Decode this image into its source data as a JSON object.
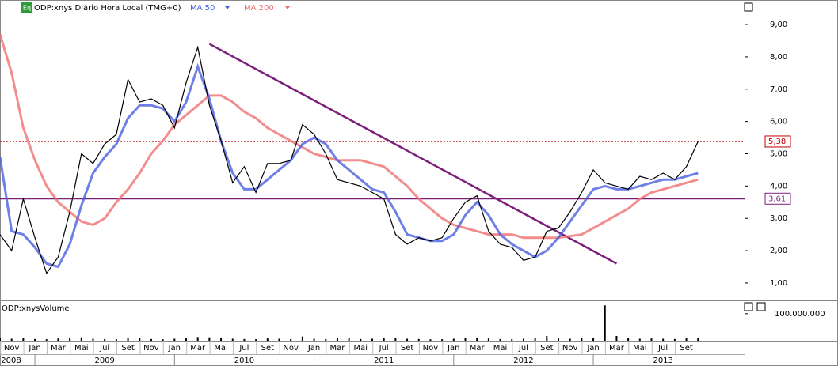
{
  "header": {
    "eq": "Eq",
    "symbol": "ODP:xnys Diário Hora Local (TMG+0)",
    "volume_label": "ODP:xnysVolume"
  },
  "chart_data": [
    {
      "type": "line",
      "x": [
        "2008-10",
        "2008-11",
        "2008-12",
        "2009-01",
        "2009-02",
        "2009-03",
        "2009-04",
        "2009-05",
        "2009-06",
        "2009-07",
        "2009-08",
        "2009-09",
        "2009-10",
        "2009-11",
        "2009-12",
        "2010-01",
        "2010-02",
        "2010-03",
        "2010-04",
        "2010-05",
        "2010-06",
        "2010-07",
        "2010-08",
        "2010-09",
        "2010-10",
        "2010-11",
        "2010-12",
        "2011-01",
        "2011-02",
        "2011-03",
        "2011-04",
        "2011-05",
        "2011-06",
        "2011-07",
        "2011-08",
        "2011-09",
        "2011-10",
        "2011-11",
        "2011-12",
        "2012-01",
        "2012-02",
        "2012-03",
        "2012-04",
        "2012-05",
        "2012-06",
        "2012-07",
        "2012-08",
        "2012-09",
        "2012-10",
        "2012-11",
        "2012-12",
        "2013-01",
        "2013-02",
        "2013-03",
        "2013-04",
        "2013-05",
        "2013-06",
        "2013-07",
        "2013-08",
        "2013-09",
        "2013-10"
      ],
      "series": [
        {
          "color": "#000000",
          "values": [
            2.5,
            2.0,
            3.6,
            2.4,
            1.3,
            1.8,
            3.2,
            5.0,
            4.7,
            5.3,
            5.6,
            7.3,
            6.6,
            6.7,
            6.5,
            5.8,
            7.2,
            8.3,
            6.5,
            5.4,
            4.1,
            4.6,
            3.8,
            4.7,
            4.7,
            4.8,
            5.9,
            5.6,
            5.0,
            4.2,
            4.1,
            4.0,
            3.8,
            3.6,
            2.5,
            2.2,
            2.4,
            2.3,
            2.4,
            3.0,
            3.5,
            3.7,
            2.6,
            2.2,
            2.1,
            1.7,
            1.8,
            2.6,
            2.7,
            3.2,
            3.8,
            4.5,
            4.1,
            4.0,
            3.9,
            4.3,
            4.2,
            4.4,
            4.2,
            4.6,
            5.38
          ]
        },
        {
          "name": "MA 50",
          "color": "#4a5fe0",
          "values": [
            4.9,
            2.6,
            2.5,
            2.1,
            1.6,
            1.5,
            2.2,
            3.4,
            4.4,
            4.9,
            5.3,
            6.1,
            6.5,
            6.5,
            6.4,
            6.0,
            6.6,
            7.7,
            6.7,
            5.4,
            4.4,
            3.9,
            3.9,
            4.2,
            4.5,
            4.8,
            5.3,
            5.5,
            5.3,
            4.8,
            4.5,
            4.2,
            3.9,
            3.8,
            3.2,
            2.5,
            2.4,
            2.3,
            2.3,
            2.5,
            3.1,
            3.5,
            3.1,
            2.5,
            2.2,
            2.0,
            1.8,
            2.0,
            2.4,
            2.9,
            3.4,
            3.9,
            4.0,
            3.9,
            3.9,
            4.0,
            4.1,
            4.2,
            4.2,
            4.3,
            4.4
          ]
        },
        {
          "name": "MA 200",
          "color": "#f07070",
          "values": [
            8.7,
            7.5,
            5.8,
            4.8,
            4.0,
            3.5,
            3.2,
            2.9,
            2.8,
            3.0,
            3.5,
            3.9,
            4.4,
            5.0,
            5.4,
            5.9,
            6.2,
            6.5,
            6.8,
            6.8,
            6.6,
            6.3,
            6.1,
            5.8,
            5.6,
            5.4,
            5.2,
            5.0,
            4.9,
            4.8,
            4.8,
            4.8,
            4.7,
            4.6,
            4.3,
            4.0,
            3.6,
            3.3,
            3.0,
            2.8,
            2.7,
            2.6,
            2.5,
            2.5,
            2.5,
            2.4,
            2.4,
            2.4,
            2.4,
            2.45,
            2.5,
            2.7,
            2.9,
            3.1,
            3.3,
            3.6,
            3.8,
            3.9,
            4.0,
            4.1,
            4.2
          ]
        }
      ],
      "hlines": [
        {
          "value": 5.38,
          "label": "5,38",
          "color": "#c00000"
        },
        {
          "value": 3.61,
          "label": "3,61",
          "color": "#7b1f7b"
        }
      ],
      "trendline": {
        "x": [
          "2010-04",
          "2013-03"
        ],
        "values": [
          8.4,
          1.6
        ],
        "color": "#7b1f7b"
      },
      "xlim": [
        "2008-10",
        "2014-02"
      ],
      "ylim": [
        0.46,
        9.76
      ],
      "yticks": [
        {
          "value": 1,
          "label": "1,00"
        },
        {
          "value": 2,
          "label": "2,00"
        },
        {
          "value": 3,
          "label": "3,00"
        },
        {
          "value": 4,
          "label": "4,00"
        },
        {
          "value": 5,
          "label": "5,00"
        },
        {
          "value": 6,
          "label": "6,00"
        },
        {
          "value": 7,
          "label": "7,00"
        },
        {
          "value": 8,
          "label": "8,00"
        },
        {
          "value": 9,
          "label": "9,00"
        }
      ],
      "xticks": [
        {
          "value": "2008-11",
          "label": "Nov"
        },
        {
          "value": "2009-01",
          "label": "Jan"
        },
        {
          "value": "2009-03",
          "label": "Mar"
        },
        {
          "value": "2009-05",
          "label": "Mai"
        },
        {
          "value": "2009-07",
          "label": "Jul"
        },
        {
          "value": "2009-09",
          "label": "Set"
        },
        {
          "value": "2009-11",
          "label": "Nov"
        },
        {
          "value": "2010-01",
          "label": "Jan"
        },
        {
          "value": "2010-03",
          "label": "Mar"
        },
        {
          "value": "2010-05",
          "label": "Mai"
        },
        {
          "value": "2010-07",
          "label": "Jul"
        },
        {
          "value": "2010-09",
          "label": "Set"
        },
        {
          "value": "2010-11",
          "label": "Nov"
        },
        {
          "value": "2011-01",
          "label": "Jan"
        },
        {
          "value": "2011-03",
          "label": "Mar"
        },
        {
          "value": "2011-05",
          "label": "Mai"
        },
        {
          "value": "2011-07",
          "label": "Jul"
        },
        {
          "value": "2011-09",
          "label": "Set"
        },
        {
          "value": "2011-11",
          "label": "Nov"
        },
        {
          "value": "2012-01",
          "label": "Jan"
        },
        {
          "value": "2012-03",
          "label": "Mar"
        },
        {
          "value": "2012-05",
          "label": "Mai"
        },
        {
          "value": "2012-07",
          "label": "Jul"
        },
        {
          "value": "2012-09",
          "label": "Set"
        },
        {
          "value": "2012-11",
          "label": "Nov"
        },
        {
          "value": "2013-01",
          "label": "Jan"
        },
        {
          "value": "2013-03",
          "label": "Mar"
        },
        {
          "value": "2013-05",
          "label": "Mai"
        },
        {
          "value": "2013-07",
          "label": "Jul"
        },
        {
          "value": "2013-09",
          "label": "Set"
        }
      ],
      "year_labels": [
        "2008",
        "2009",
        "2010",
        "2011",
        "2012",
        "2013"
      ]
    },
    {
      "type": "bar",
      "color": "#000000",
      "values": [
        12000000,
        10000000,
        14000000,
        9000000,
        8000000,
        11000000,
        13000000,
        15000000,
        10000000,
        9000000,
        8000000,
        12000000,
        14000000,
        9000000,
        8000000,
        10000000,
        11000000,
        16000000,
        15000000,
        12000000,
        10000000,
        9000000,
        8000000,
        11000000,
        10000000,
        9000000,
        18000000,
        10000000,
        9000000,
        12000000,
        11000000,
        9000000,
        10000000,
        12000000,
        14000000,
        10000000,
        9000000,
        8000000,
        8000000,
        10000000,
        12000000,
        14000000,
        11000000,
        9000000,
        8000000,
        10000000,
        13000000,
        20000000,
        11000000,
        10000000,
        12000000,
        14000000,
        130000000,
        20000000,
        12000000,
        10000000,
        11000000,
        10000000,
        9000000,
        12000000,
        14000000
      ],
      "ylim": [
        0,
        145000000
      ],
      "yticks": [
        {
          "value": 100000000,
          "label": "100.000.000"
        }
      ]
    }
  ]
}
